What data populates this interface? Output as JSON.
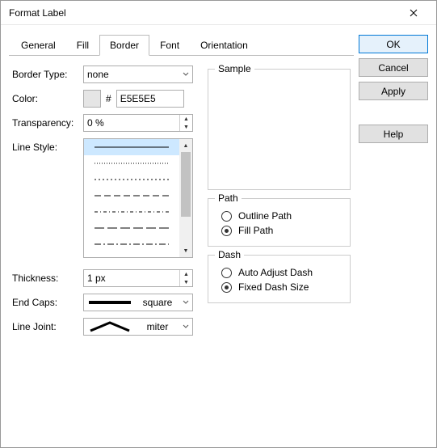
{
  "title": "Format Label",
  "tabs": [
    "General",
    "Fill",
    "Border",
    "Font",
    "Orientation"
  ],
  "activeTab": 2,
  "labels": {
    "borderType": "Border Type:",
    "color": "Color:",
    "transparency": "Transparency:",
    "lineStyle": "Line Style:",
    "thickness": "Thickness:",
    "endCaps": "End Caps:",
    "lineJoint": "Line Joint:"
  },
  "values": {
    "borderType": "none",
    "colorHex": "E5E5E5",
    "colorSwatch": "#e5e5e5",
    "transparency": "0 %",
    "thickness": "1 px",
    "endCaps": "square",
    "lineJoint": "miter"
  },
  "lineStyles": [
    {
      "selected": true,
      "dash": ""
    },
    {
      "selected": false,
      "dash": "1,2"
    },
    {
      "selected": false,
      "dash": "2,3"
    },
    {
      "selected": false,
      "dash": "8,4"
    },
    {
      "selected": false,
      "dash": "4,3,1,3"
    },
    {
      "selected": false,
      "dash": "12,4"
    },
    {
      "selected": false,
      "dash": "8,3,2,3"
    }
  ],
  "groups": {
    "sample": "Sample",
    "path": "Path",
    "dash": "Dash"
  },
  "path": {
    "outline": {
      "label": "Outline Path",
      "checked": false
    },
    "fill": {
      "label": "Fill Path",
      "checked": true
    }
  },
  "dash": {
    "auto": {
      "label": "Auto Adjust Dash",
      "checked": false
    },
    "fixed": {
      "label": "Fixed Dash Size",
      "checked": true
    }
  },
  "buttons": {
    "ok": "OK",
    "cancel": "Cancel",
    "apply": "Apply",
    "help": "Help"
  }
}
